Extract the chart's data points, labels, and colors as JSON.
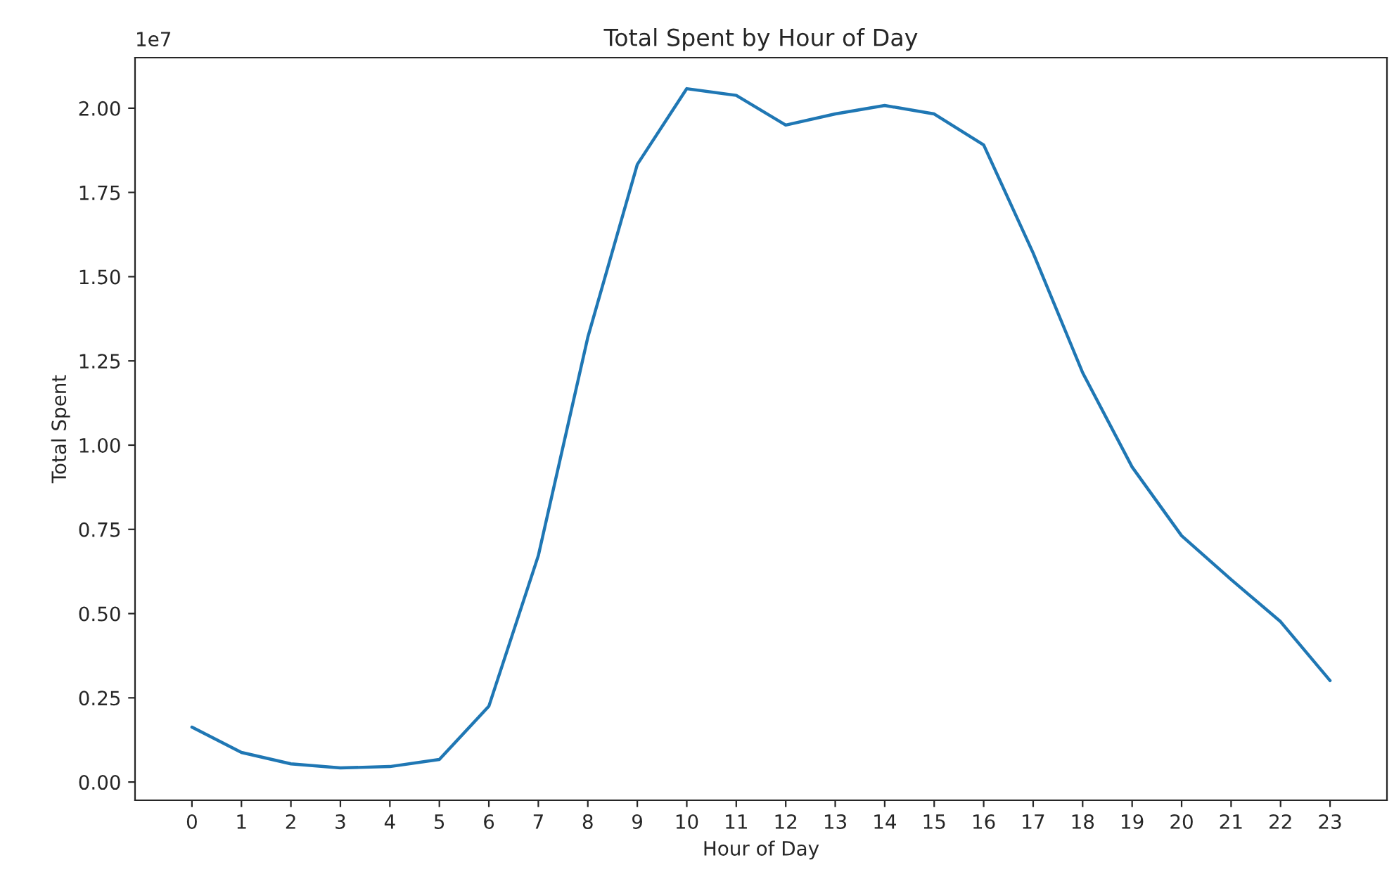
{
  "chart_data": {
    "type": "line",
    "title": "Total Spent by Hour of Day",
    "xlabel": "Hour of Day",
    "ylabel": "Total Spent",
    "x": [
      0,
      1,
      2,
      3,
      4,
      5,
      6,
      7,
      8,
      9,
      10,
      11,
      12,
      13,
      14,
      15,
      16,
      17,
      18,
      19,
      20,
      21,
      22,
      23
    ],
    "series": [
      {
        "color": "#1f77b4",
        "values": [
          0.163,
          0.088,
          0.054,
          0.042,
          0.046,
          0.067,
          0.225,
          0.672,
          1.32,
          1.833,
          2.058,
          2.038,
          1.95,
          1.983,
          2.008,
          1.983,
          1.891,
          1.57,
          1.215,
          0.935,
          0.731,
          0.601,
          0.476,
          0.301
        ]
      }
    ],
    "xlim": [
      -1.15,
      24.15
    ],
    "xticks": [
      0,
      1,
      2,
      3,
      4,
      5,
      6,
      7,
      8,
      9,
      10,
      11,
      12,
      13,
      14,
      15,
      16,
      17,
      18,
      19,
      20,
      21,
      22,
      23
    ],
    "ylim": [
      -0.054,
      2.15
    ],
    "yticks": [
      {
        "value": 0,
        "label": "0.00"
      },
      {
        "value": 0.25,
        "label": "0.25"
      },
      {
        "value": 0.5,
        "label": "0.50"
      },
      {
        "value": 0.75,
        "label": "0.75"
      },
      {
        "value": 1.0,
        "label": "1.00"
      },
      {
        "value": 1.25,
        "label": "1.25"
      },
      {
        "value": 1.5,
        "label": "1.50"
      },
      {
        "value": 1.75,
        "label": "1.75"
      },
      {
        "value": 2.0,
        "label": "2.00"
      }
    ],
    "annotations": [
      "1e7"
    ],
    "grid": false,
    "legend": false,
    "marker": "none",
    "line_style": "solid"
  }
}
